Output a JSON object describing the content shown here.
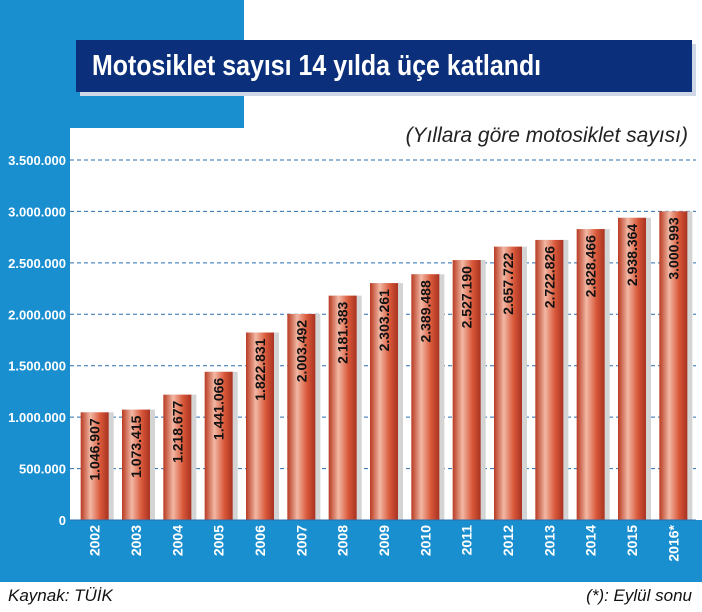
{
  "header": {
    "title": "Motosiklet sayısı 14 yılda üçe katlandı",
    "subtitle": "(Yıllara göre motosiklet sayısı)"
  },
  "footer": {
    "source": "Kaynak: TÜİK",
    "note": "(*): Eylül sonu"
  },
  "colors": {
    "brand_blue": "#1a8fd0",
    "title_navy": "#0b2f7a",
    "bar_red": "#c8442a",
    "gridline": "#2a6fb0"
  },
  "chart_data": {
    "type": "bar",
    "title": "Motosiklet sayısı 14 yılda üçe katlandı",
    "subtitle": "(Yıllara göre motosiklet sayısı)",
    "categories": [
      "2002",
      "2003",
      "2004",
      "2005",
      "2006",
      "2007",
      "2008",
      "2009",
      "2010",
      "2011",
      "2012",
      "2013",
      "2014",
      "2015",
      "2016*"
    ],
    "values": [
      1046907,
      1073415,
      1218677,
      1441066,
      1822831,
      2003492,
      2181383,
      2303261,
      2389488,
      2527190,
      2657722,
      2722826,
      2828466,
      2938364,
      3000993
    ],
    "value_labels": [
      "1.046.907",
      "1.073.415",
      "1.218.677",
      "1.441.066",
      "1.822.831",
      "2.003.492",
      "2.181.383",
      "2.303.261",
      "2.389.488",
      "2.527.190",
      "2.657.722",
      "2.722.826",
      "2.828.466",
      "2.938.364",
      "3.000.993"
    ],
    "y_ticks": [
      0,
      500000,
      1000000,
      1500000,
      2000000,
      2500000,
      3000000,
      3500000
    ],
    "y_tick_labels": [
      "0",
      "500.000",
      "1.000.000",
      "1.500.000",
      "2.000.000",
      "2.500.000",
      "3.000.000",
      "3.500.000"
    ],
    "ylim": [
      0,
      3500000
    ],
    "grid": true,
    "xlabel": "",
    "ylabel": ""
  }
}
